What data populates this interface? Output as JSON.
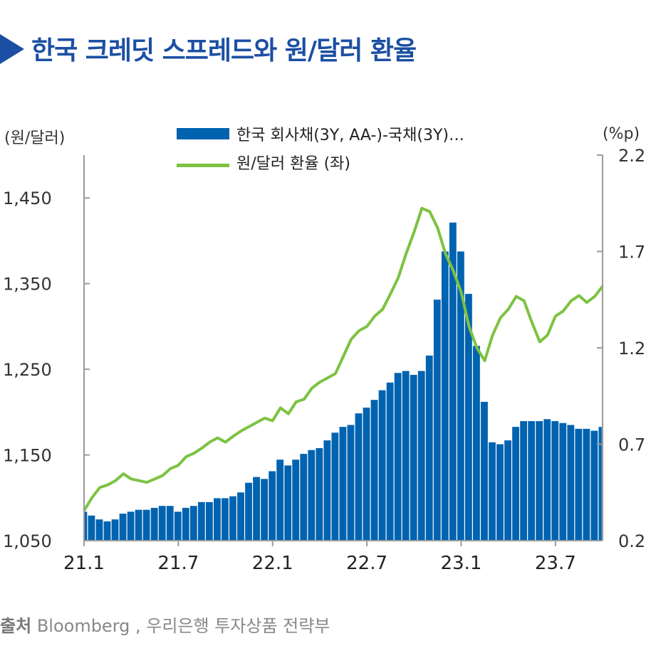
{
  "header": {
    "title": "한국 크레딧 스프레드와 원/달러 환율"
  },
  "axes": {
    "left_unit": "(원/달러)",
    "right_unit": "(%p)"
  },
  "legend": {
    "bar_label": "한국 회사채(3Y, AA-)-국채(3Y)…",
    "line_label": "원/달러 환율 (좌)"
  },
  "source": {
    "label": "출처",
    "text": "Bloomberg , 우리은행 투자상품 전략부"
  },
  "colors": {
    "bar": "#0063b0",
    "line": "#7dc242",
    "title": "#1b4fa3"
  },
  "chart_data": {
    "type": "bar+line",
    "title": "한국 크레딧 스프레드와 원/달러 환율",
    "x_tick_labels": [
      "21.1",
      "21.7",
      "22.1",
      "22.7",
      "23.1",
      "23.7"
    ],
    "x_tick_months": [
      0,
      6,
      12,
      18,
      24,
      30
    ],
    "x_range_months": [
      0,
      33
    ],
    "left_axis": {
      "label": "(원/달러)",
      "ylim": [
        1050,
        1500
      ],
      "ticks": [
        1050,
        1150,
        1250,
        1350,
        1450
      ],
      "tick_labels": [
        "1,050",
        "1,150",
        "1,250",
        "1,350",
        "1,450"
      ]
    },
    "right_axis": {
      "label": "(%p)",
      "ylim": [
        0.2,
        2.2
      ],
      "ticks": [
        0.2,
        0.7,
        1.2,
        1.7,
        2.2
      ],
      "tick_labels": [
        "0.2",
        "0.7",
        "1.2",
        "1.7",
        "2.2"
      ]
    },
    "series": [
      {
        "name": "한국 회사채(3Y, AA-)-국채(3Y)…",
        "type": "bar",
        "axis": "right",
        "month": [
          0,
          0.5,
          1,
          1.5,
          2,
          2.5,
          3,
          3.5,
          4,
          4.5,
          5,
          5.5,
          6,
          6.5,
          7,
          7.5,
          8,
          8.5,
          9,
          9.5,
          10,
          10.5,
          11,
          11.5,
          12,
          12.5,
          13,
          13.5,
          14,
          14.5,
          15,
          15.5,
          16,
          16.5,
          17,
          17.5,
          18,
          18.5,
          19,
          19.5,
          20,
          20.5,
          21,
          21.5,
          22,
          22.5,
          23,
          23.5,
          24,
          24.5,
          25,
          25.5,
          26,
          26.5,
          27,
          27.5,
          28,
          28.5,
          29,
          29.5,
          30,
          30.5,
          31,
          31.5,
          32,
          32.5,
          33
        ],
        "values": [
          0.35,
          0.33,
          0.31,
          0.3,
          0.31,
          0.34,
          0.35,
          0.36,
          0.36,
          0.37,
          0.38,
          0.38,
          0.35,
          0.37,
          0.38,
          0.4,
          0.4,
          0.42,
          0.42,
          0.43,
          0.45,
          0.5,
          0.53,
          0.52,
          0.56,
          0.62,
          0.59,
          0.62,
          0.65,
          0.67,
          0.68,
          0.72,
          0.76,
          0.79,
          0.8,
          0.86,
          0.89,
          0.93,
          0.98,
          1.02,
          1.07,
          1.08,
          1.06,
          1.08,
          1.16,
          1.45,
          1.7,
          1.85,
          1.7,
          1.48,
          1.21,
          0.92,
          0.71,
          0.7,
          0.72,
          0.79,
          0.82,
          0.82,
          0.82,
          0.83,
          0.82,
          0.81,
          0.8,
          0.78,
          0.78,
          0.77,
          0.79
        ]
      },
      {
        "name": "원/달러 환율 (좌)",
        "type": "line",
        "axis": "left",
        "month": [
          0,
          0.5,
          1,
          1.5,
          2,
          2.5,
          3,
          3.5,
          4,
          4.5,
          5,
          5.5,
          6,
          6.5,
          7,
          7.5,
          8,
          8.5,
          9,
          9.5,
          10,
          10.5,
          11,
          11.5,
          12,
          12.5,
          13,
          13.5,
          14,
          14.5,
          15,
          15.5,
          16,
          16.5,
          17,
          17.5,
          18,
          18.5,
          19,
          19.5,
          20,
          20.5,
          21,
          21.5,
          22,
          22.5,
          23,
          23.5,
          24,
          24.5,
          25,
          25.5,
          26,
          26.5,
          27,
          27.5,
          28,
          28.5,
          29,
          29.5,
          30,
          30.5,
          31,
          31.5,
          32,
          32.5,
          33
        ],
        "values": [
          1085,
          1100,
          1112,
          1115,
          1120,
          1128,
          1122,
          1120,
          1118,
          1122,
          1126,
          1134,
          1138,
          1148,
          1152,
          1158,
          1165,
          1170,
          1165,
          1172,
          1178,
          1183,
          1188,
          1193,
          1190,
          1205,
          1198,
          1212,
          1215,
          1228,
          1235,
          1240,
          1245,
          1265,
          1285,
          1295,
          1300,
          1312,
          1320,
          1338,
          1357,
          1385,
          1410,
          1438,
          1434,
          1415,
          1385,
          1365,
          1340,
          1300,
          1275,
          1260,
          1290,
          1310,
          1320,
          1335,
          1330,
          1305,
          1282,
          1290,
          1312,
          1318,
          1330,
          1336,
          1328,
          1335,
          1347
        ]
      }
    ]
  }
}
